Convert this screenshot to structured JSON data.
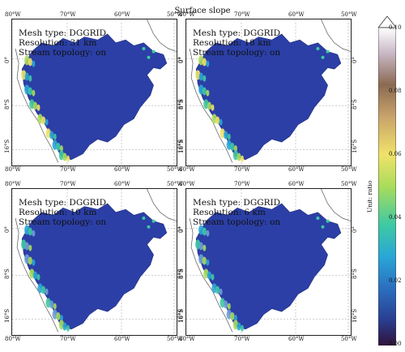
{
  "figure": {
    "title": "Surface slope"
  },
  "panels": [
    {
      "mesh_type": "Mesh type: DGGRID",
      "resolution": "Resolution: 31 km",
      "stream_topology": "Stream topology: on"
    },
    {
      "mesh_type": "Mesh type: DGGRID",
      "resolution": "Resolution: 18 km",
      "stream_topology": "Stream topology: on"
    },
    {
      "mesh_type": "Mesh type: DGGRID",
      "resolution": "Resolution: 10 km",
      "stream_topology": "Stream topology: on"
    },
    {
      "mesh_type": "Mesh type: DGGRID",
      "resolution": "Resolution: 6 km",
      "stream_topology": "Stream topology: on"
    }
  ],
  "axes": {
    "lon_labels": [
      "80°W",
      "70°W",
      "60°W",
      "50°W"
    ],
    "lat_labels": [
      "0°",
      "8°S",
      "16°S"
    ]
  },
  "colorbar": {
    "unit_label": "Unit: ratio",
    "ticks": [
      "0.10",
      "0.08",
      "0.06",
      "0.04",
      "0.02",
      "0.00"
    ],
    "colors": [
      "#30123b",
      "#2a3e8f",
      "#2b6fc0",
      "#2aa6d6",
      "#3fc9a3",
      "#a9dc5b",
      "#f0e26a",
      "#c9a36b",
      "#8a6a52",
      "#c9b8c6",
      "#ffffff"
    ]
  },
  "colors": {
    "basin_fill": "#2b3fa6",
    "ocean": "#ffffff",
    "coast": "#555555",
    "grid": "#999999"
  }
}
